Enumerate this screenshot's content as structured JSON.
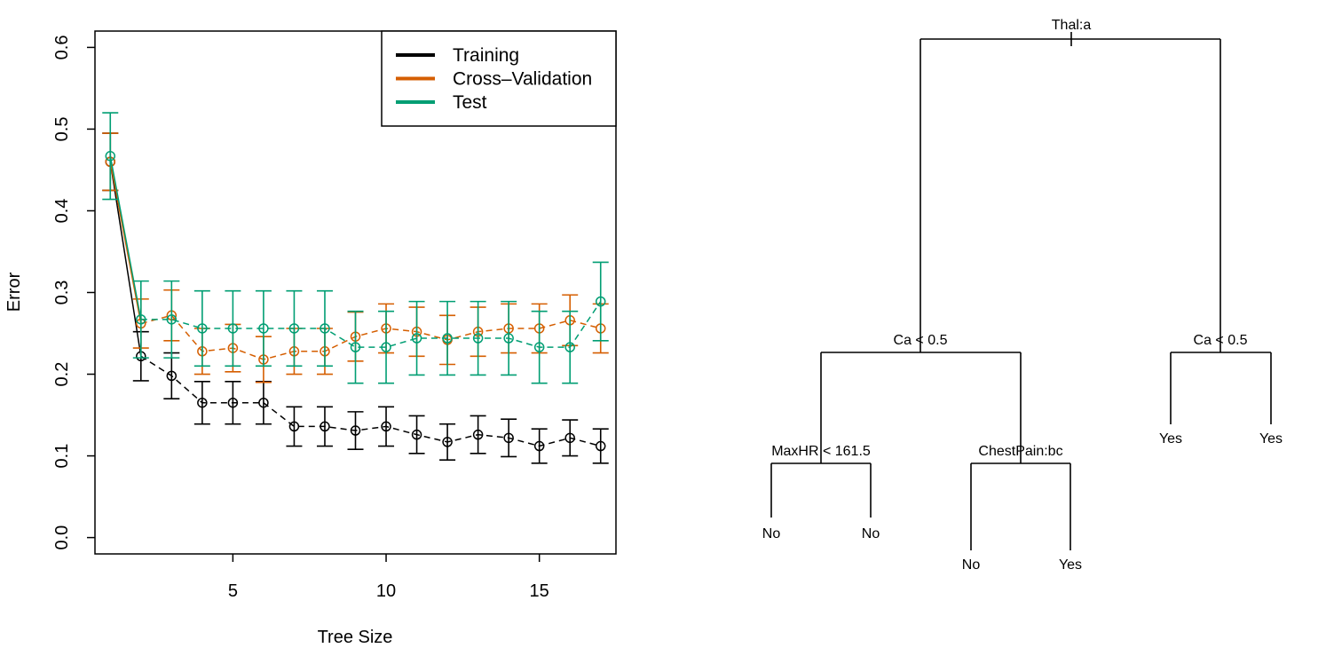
{
  "chart_data": [
    {
      "type": "line",
      "xlabel": "Tree Size",
      "ylabel": "Error",
      "xlim": [
        0.5,
        17.5
      ],
      "ylim": [
        -0.02,
        0.62
      ],
      "x_ticks": [
        "5",
        "10",
        "15"
      ],
      "y_ticks": [
        "0.0",
        "0.1",
        "0.2",
        "0.3",
        "0.4",
        "0.5",
        "0.6"
      ],
      "legend_position": "top-right",
      "x": [
        1,
        2,
        3,
        4,
        5,
        6,
        7,
        8,
        9,
        10,
        11,
        12,
        13,
        14,
        15,
        16,
        17
      ],
      "series": [
        {
          "name": "Training",
          "color": "#000000",
          "values": [
            0.46,
            0.222,
            0.198,
            0.165,
            0.165,
            0.165,
            0.136,
            0.136,
            0.131,
            0.136,
            0.126,
            0.117,
            0.126,
            0.122,
            0.112,
            0.122,
            0.112
          ],
          "err": [
            0.035,
            0.03,
            0.028,
            0.026,
            0.026,
            0.026,
            0.024,
            0.024,
            0.023,
            0.024,
            0.023,
            0.022,
            0.023,
            0.023,
            0.021,
            0.022,
            0.021
          ]
        },
        {
          "name": "Cross–Validation",
          "color": "#d55e00",
          "values": [
            0.46,
            0.262,
            0.272,
            0.228,
            0.232,
            0.218,
            0.228,
            0.228,
            0.246,
            0.256,
            0.252,
            0.242,
            0.252,
            0.256,
            0.256,
            0.266,
            0.256
          ],
          "err": [
            0.035,
            0.03,
            0.031,
            0.028,
            0.029,
            0.028,
            0.028,
            0.028,
            0.03,
            0.03,
            0.03,
            0.03,
            0.03,
            0.03,
            0.03,
            0.031,
            0.03
          ]
        },
        {
          "name": "Test",
          "color": "#009e73",
          "values": [
            0.467,
            0.267,
            0.267,
            0.256,
            0.256,
            0.256,
            0.256,
            0.256,
            0.233,
            0.233,
            0.244,
            0.244,
            0.244,
            0.244,
            0.233,
            0.233,
            0.289
          ],
          "err": [
            0.053,
            0.047,
            0.047,
            0.046,
            0.046,
            0.046,
            0.046,
            0.046,
            0.044,
            0.044,
            0.045,
            0.045,
            0.045,
            0.045,
            0.044,
            0.044,
            0.048
          ]
        }
      ]
    },
    {
      "type": "tree",
      "root": {
        "label": "Thal:a",
        "left": {
          "label": "Ca < 0.5",
          "left": {
            "label": "MaxHR < 161.5",
            "left": {
              "leaf": "No"
            },
            "right": {
              "leaf": "No"
            }
          },
          "right": {
            "label": "ChestPain:bc",
            "left": {
              "leaf": "No"
            },
            "right": {
              "leaf": "Yes"
            }
          }
        },
        "right": {
          "label": "Ca < 0.5",
          "left": {
            "leaf": "Yes"
          },
          "right": {
            "leaf": "Yes"
          }
        }
      }
    }
  ]
}
